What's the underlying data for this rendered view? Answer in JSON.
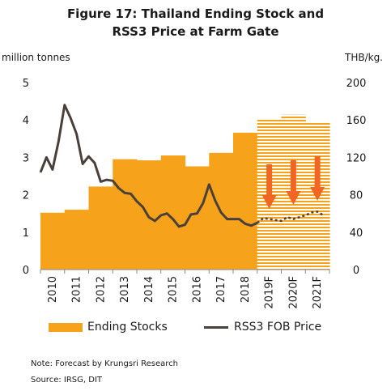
{
  "title_line1": "Figure 17: Thailand Ending Stock and",
  "title_line2": "RSS3 Price at Farm Gate",
  "notes": {
    "note": "Note: Forecast by Krungsri Research",
    "source": "Source: IRSG, DIT"
  },
  "chart_data": {
    "type": "bar",
    "left_unit": "million tonnes",
    "right_unit": "THB/kg.",
    "left_axis": {
      "ylim": [
        0,
        5
      ],
      "ticks": [
        "0",
        "1",
        "2",
        "3",
        "4",
        "5"
      ]
    },
    "right_axis": {
      "ylim": [
        0,
        200
      ],
      "ticks": [
        "0",
        "40",
        "80",
        "120",
        "160",
        "200"
      ]
    },
    "categories": [
      "2010",
      "2011",
      "2012",
      "2013",
      "2014",
      "2015",
      "2016",
      "2017",
      "2018",
      "2019F",
      "2020F",
      "2021F"
    ],
    "forecast_start_index": 9,
    "series": [
      {
        "name": "Ending Stocks",
        "axis": "left",
        "kind": "bar",
        "color": "#f7a21b",
        "values": [
          1.52,
          1.6,
          2.22,
          2.95,
          2.92,
          3.05,
          2.76,
          3.12,
          3.66,
          4.04,
          4.14,
          3.95
        ]
      },
      {
        "name": "RSS3 FOB Price",
        "axis": "right",
        "kind": "line",
        "color": "#4a403b",
        "forecast_style": "dashed",
        "points": [
          [
            2010.0,
            104
          ],
          [
            2010.25,
            120
          ],
          [
            2010.5,
            107
          ],
          [
            2010.75,
            137
          ],
          [
            2011.0,
            176
          ],
          [
            2011.25,
            162
          ],
          [
            2011.5,
            145
          ],
          [
            2011.75,
            113
          ],
          [
            2012.0,
            121
          ],
          [
            2012.25,
            114
          ],
          [
            2012.5,
            94
          ],
          [
            2012.75,
            96
          ],
          [
            2013.0,
            95
          ],
          [
            2013.25,
            87
          ],
          [
            2013.5,
            82
          ],
          [
            2013.75,
            81
          ],
          [
            2014.0,
            73
          ],
          [
            2014.25,
            67
          ],
          [
            2014.5,
            56
          ],
          [
            2014.75,
            52
          ],
          [
            2015.0,
            58
          ],
          [
            2015.25,
            60
          ],
          [
            2015.5,
            54
          ],
          [
            2015.75,
            46
          ],
          [
            2016.0,
            48
          ],
          [
            2016.25,
            59
          ],
          [
            2016.5,
            60
          ],
          [
            2016.75,
            71
          ],
          [
            2017.0,
            91
          ],
          [
            2017.25,
            74
          ],
          [
            2017.5,
            61
          ],
          [
            2017.75,
            54
          ],
          [
            2018.0,
            54
          ],
          [
            2018.25,
            54
          ],
          [
            2018.5,
            49
          ],
          [
            2018.75,
            47
          ],
          [
            2019.0,
            50
          ],
          [
            2019.25,
            55
          ],
          [
            2019.5,
            54
          ],
          [
            2019.75,
            53
          ],
          [
            2020.0,
            52
          ],
          [
            2020.25,
            56
          ],
          [
            2020.5,
            54
          ],
          [
            2020.75,
            56
          ],
          [
            2021.0,
            58
          ],
          [
            2021.25,
            61
          ],
          [
            2021.5,
            62
          ],
          [
            2021.75,
            58
          ]
        ]
      }
    ],
    "annotations": [
      {
        "type": "down-arrow",
        "category": "2019F",
        "color": "#f26522"
      },
      {
        "type": "down-arrow",
        "category": "2020F",
        "color": "#f26522"
      },
      {
        "type": "down-arrow",
        "category": "2021F",
        "color": "#f26522"
      }
    ],
    "legend": {
      "placement": "bottom",
      "labels": [
        "Ending Stocks",
        "RSS3 FOB Price"
      ]
    },
    "grid": false
  }
}
